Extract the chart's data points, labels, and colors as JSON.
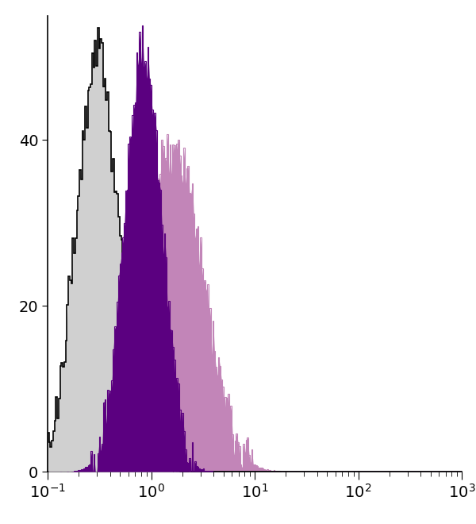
{
  "background_color": "#ffffff",
  "xlim": [
    0.1,
    1000
  ],
  "ylim": [
    0,
    55
  ],
  "yticks": [
    0,
    20,
    40
  ],
  "gray_hist": {
    "log_mean": -0.52,
    "log_std": 0.2,
    "peak_height": 52,
    "fill_color": "#d0d0d0",
    "edge_color": "#000000",
    "edge_width": 1.2
  },
  "dark_purple_hist": {
    "log_mean": -0.08,
    "log_std": 0.18,
    "peak_height": 52,
    "fill_color": "#5b0080",
    "edge_color": "#5b0080",
    "edge_width": 0.8
  },
  "light_purple_hist": {
    "log_mean": 0.22,
    "log_std": 0.28,
    "peak_height": 40,
    "fill_color": "#c285b8",
    "edge_color": "#c285b8",
    "edge_width": 0.8
  },
  "n_bins": 300,
  "n_points": 100000,
  "noise_scale": 2.5
}
